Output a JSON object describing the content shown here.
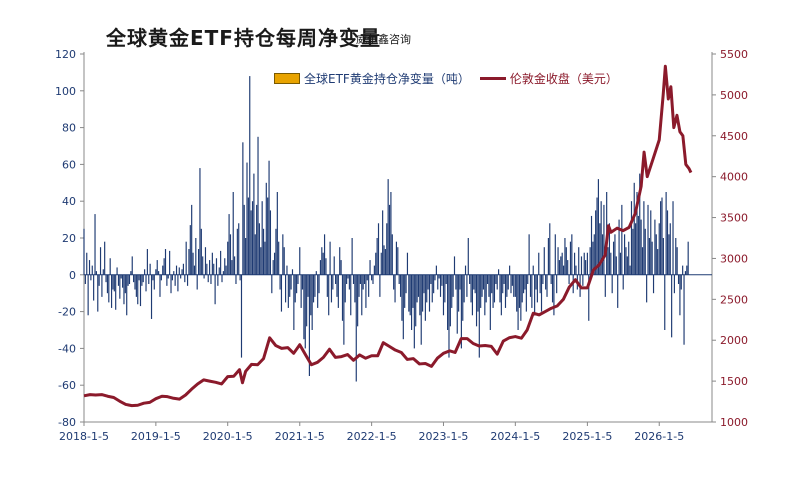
{
  "title": "全球黄金ETF持仓每周净变量",
  "source": "威尔鑫咨询",
  "colors": {
    "bars": "#1f3b73",
    "line": "#8b1a2b",
    "left_axis_text": "#1f3b73",
    "right_axis_text": "#8b1a2b",
    "legend_swatch": "#e8a300"
  },
  "chart_data": {
    "type": "bar+line",
    "left_axis": {
      "ylim": [
        -80,
        120
      ],
      "ticks": [
        "120",
        "100",
        "80",
        "60",
        "40",
        "20",
        "0",
        "-20",
        "-40",
        "-60",
        "-80"
      ]
    },
    "right_axis": {
      "ylim": [
        1000,
        5500
      ],
      "ticks": [
        "5500",
        "5000",
        "4500",
        "4000",
        "3500",
        "3000",
        "2500",
        "2000",
        "1500",
        "1000"
      ]
    },
    "x_axis": {
      "start": "2018-01-05",
      "end": "2026-09-30",
      "tick_labels": [
        "2018-1-5",
        "2019-1-5",
        "2020-1-5",
        "2021-1-5",
        "2022-1-5",
        "2023-1-5",
        "2024-1-5",
        "2025-1-5",
        "2026-1-5"
      ]
    },
    "legend": {
      "position": "top",
      "entries": [
        "全球ETF黄金持仓净变量（吨）",
        "伦敦金收盘（美元）"
      ]
    },
    "series": [
      {
        "name": "全球ETF黄金持仓净变量（吨）",
        "type": "bar",
        "axis": "left",
        "weekly_values_by_year": [
          {
            "year": 2018,
            "values": [
              25,
              -5,
              12,
              -22,
              8,
              -3,
              5,
              -14,
              33,
              2,
              -20,
              -6,
              15,
              -12,
              3,
              18,
              -4,
              -10,
              -15,
              9,
              -18,
              -8,
              -9,
              -19,
              4,
              -6,
              -13,
              -2,
              -7,
              -16,
              -10,
              -22,
              -6,
              -5,
              2,
              10,
              -4,
              -8,
              -12,
              -16,
              -3,
              -17,
              -6,
              -4,
              3,
              -9,
              14,
              -5,
              6,
              -24,
              -3,
              -8
            ]
          },
          {
            "year": 2019,
            "values": [
              3,
              8,
              2,
              -12,
              -3,
              5,
              9,
              14,
              -6,
              -2,
              13,
              -10,
              -3,
              2,
              -6,
              5,
              -9,
              4,
              -2,
              3,
              6,
              -4,
              18,
              -6,
              14,
              27,
              38,
              12,
              5,
              20,
              -8,
              14,
              58,
              25,
              10,
              -2,
              15,
              6,
              -4,
              8,
              -5,
              12,
              6,
              -16,
              9,
              -6,
              4,
              13,
              -4,
              2,
              9,
              5
            ]
          },
          {
            "year": 2020,
            "values": [
              18,
              33,
              22,
              8,
              45,
              10,
              -5,
              25,
              28,
              -3,
              -45,
              72,
              38,
              20,
              61,
              42,
              108,
              35,
              40,
              55,
              22,
              38,
              75,
              28,
              15,
              40,
              25,
              18,
              50,
              42,
              62,
              35,
              -10,
              8,
              12,
              25,
              45,
              18,
              -8,
              -20,
              22,
              15,
              -15,
              5,
              -18,
              -12,
              -8,
              3,
              -30,
              -15,
              -10,
              -5
            ]
          },
          {
            "year": 2021,
            "values": [
              15,
              -18,
              -8,
              -35,
              -40,
              -28,
              -12,
              -55,
              -22,
              -30,
              -15,
              -12,
              2,
              -18,
              -10,
              8,
              15,
              12,
              22,
              9,
              -12,
              -22,
              18,
              -15,
              -8,
              10,
              -5,
              -12,
              -18,
              15,
              8,
              -25,
              -38,
              -15,
              -5,
              -2,
              -8,
              -22,
              20,
              -5,
              -15,
              -58,
              -28,
              -12,
              -5,
              -22,
              -8,
              -5,
              -18,
              -3,
              -12,
              8
            ]
          },
          {
            "year": 2022,
            "values": [
              -3,
              -5,
              5,
              12,
              20,
              28,
              -12,
              12,
              35,
              16,
              14,
              28,
              52,
              38,
              45,
              22,
              -8,
              -15,
              18,
              15,
              -5,
              -12,
              -25,
              -35,
              -18,
              -10,
              12,
              -20,
              -22,
              -30,
              -18,
              -40,
              -28,
              -15,
              -12,
              -22,
              -38,
              -20,
              -10,
              -25,
              -15,
              -8,
              -20,
              -5,
              -15,
              -10,
              -3,
              5,
              -8,
              -2,
              -12,
              -6
            ]
          },
          {
            "year": 2023,
            "values": [
              -22,
              -15,
              -5,
              -30,
              -45,
              -28,
              -18,
              -12,
              10,
              -8,
              -32,
              -20,
              -8,
              -40,
              -25,
              -15,
              5,
              -12,
              20,
              -5,
              -15,
              -22,
              -8,
              -10,
              -28,
              -20,
              -45,
              -18,
              -12,
              -8,
              -22,
              -15,
              -5,
              -12,
              -30,
              -10,
              -18,
              -15,
              -5,
              -8,
              3,
              -15,
              -22,
              -10,
              -5,
              -18,
              -12,
              -8,
              5,
              -10,
              -6,
              -12
            ]
          },
          {
            "year": 2024,
            "values": [
              -12,
              -20,
              -30,
              -18,
              -25,
              -15,
              -10,
              -8,
              -20,
              -5,
              22,
              -12,
              -18,
              5,
              -22,
              -8,
              -15,
              12,
              -10,
              -20,
              -5,
              15,
              -8,
              -12,
              20,
              28,
              -5,
              -15,
              -22,
              22,
              -10,
              15,
              8,
              10,
              12,
              5,
              20,
              15,
              8,
              -5,
              18,
              22,
              -10,
              12,
              5,
              -8,
              15,
              -12,
              10,
              -6,
              12,
              8
            ]
          },
          {
            "year": 2025,
            "values": [
              12,
              -25,
              15,
              32,
              18,
              22,
              35,
              42,
              52,
              28,
              40,
              22,
              38,
              -12,
              45,
              15,
              28,
              12,
              -10,
              18,
              22,
              10,
              -18,
              30,
              12,
              38,
              -8,
              22,
              15,
              10,
              18,
              5,
              40,
              25,
              50,
              28,
              45,
              32,
              55,
              30,
              15,
              40,
              25,
              -15,
              38,
              20,
              35,
              18,
              -10,
              30,
              22,
              14
            ]
          },
          {
            "year": 2026,
            "values": [
              28,
              40,
              42,
              20,
              -30,
              45,
              35,
              22,
              28,
              -34,
              40,
              -10,
              20,
              15,
              -5,
              -22,
              -8,
              5,
              -38,
              2,
              5,
              18
            ]
          }
        ]
      },
      {
        "name": "伦敦金收盘（美元）",
        "type": "line",
        "axis": "right",
        "points": [
          [
            "2018-01-05",
            1320
          ],
          [
            "2018-02-05",
            1335
          ],
          [
            "2018-03-05",
            1330
          ],
          [
            "2018-04-05",
            1335
          ],
          [
            "2018-05-05",
            1315
          ],
          [
            "2018-06-05",
            1300
          ],
          [
            "2018-07-05",
            1255
          ],
          [
            "2018-08-05",
            1215
          ],
          [
            "2018-09-05",
            1200
          ],
          [
            "2018-10-05",
            1205
          ],
          [
            "2018-11-05",
            1230
          ],
          [
            "2018-12-05",
            1240
          ],
          [
            "2019-01-05",
            1285
          ],
          [
            "2019-02-05",
            1315
          ],
          [
            "2019-03-05",
            1310
          ],
          [
            "2019-04-05",
            1290
          ],
          [
            "2019-05-05",
            1280
          ],
          [
            "2019-06-05",
            1330
          ],
          [
            "2019-07-05",
            1400
          ],
          [
            "2019-08-05",
            1465
          ],
          [
            "2019-09-05",
            1515
          ],
          [
            "2019-10-05",
            1500
          ],
          [
            "2019-11-05",
            1485
          ],
          [
            "2019-12-05",
            1465
          ],
          [
            "2020-01-05",
            1555
          ],
          [
            "2020-02-05",
            1560
          ],
          [
            "2020-03-05",
            1640
          ],
          [
            "2020-03-20",
            1480
          ],
          [
            "2020-04-05",
            1620
          ],
          [
            "2020-05-05",
            1705
          ],
          [
            "2020-06-05",
            1700
          ],
          [
            "2020-07-05",
            1775
          ],
          [
            "2020-08-05",
            2030
          ],
          [
            "2020-09-05",
            1935
          ],
          [
            "2020-10-05",
            1900
          ],
          [
            "2020-11-05",
            1910
          ],
          [
            "2020-12-05",
            1840
          ],
          [
            "2021-01-05",
            1945
          ],
          [
            "2021-02-05",
            1815
          ],
          [
            "2021-03-05",
            1700
          ],
          [
            "2021-04-05",
            1730
          ],
          [
            "2021-05-05",
            1790
          ],
          [
            "2021-06-05",
            1890
          ],
          [
            "2021-07-05",
            1790
          ],
          [
            "2021-08-05",
            1800
          ],
          [
            "2021-09-05",
            1825
          ],
          [
            "2021-10-05",
            1755
          ],
          [
            "2021-11-05",
            1820
          ],
          [
            "2021-12-05",
            1780
          ],
          [
            "2022-01-05",
            1810
          ],
          [
            "2022-02-05",
            1810
          ],
          [
            "2022-03-05",
            1970
          ],
          [
            "2022-04-05",
            1925
          ],
          [
            "2022-05-05",
            1880
          ],
          [
            "2022-06-05",
            1850
          ],
          [
            "2022-07-05",
            1765
          ],
          [
            "2022-08-05",
            1775
          ],
          [
            "2022-09-05",
            1710
          ],
          [
            "2022-10-05",
            1715
          ],
          [
            "2022-11-05",
            1680
          ],
          [
            "2022-12-05",
            1780
          ],
          [
            "2023-01-05",
            1840
          ],
          [
            "2023-02-05",
            1870
          ],
          [
            "2023-03-05",
            1850
          ],
          [
            "2023-04-05",
            2020
          ],
          [
            "2023-05-05",
            2020
          ],
          [
            "2023-06-05",
            1960
          ],
          [
            "2023-07-05",
            1930
          ],
          [
            "2023-08-05",
            1935
          ],
          [
            "2023-09-05",
            1925
          ],
          [
            "2023-10-05",
            1830
          ],
          [
            "2023-11-05",
            1990
          ],
          [
            "2023-12-05",
            2030
          ],
          [
            "2024-01-05",
            2045
          ],
          [
            "2024-02-05",
            2025
          ],
          [
            "2024-03-05",
            2125
          ],
          [
            "2024-04-05",
            2330
          ],
          [
            "2024-05-05",
            2310
          ],
          [
            "2024-06-05",
            2350
          ],
          [
            "2024-07-05",
            2390
          ],
          [
            "2024-08-05",
            2420
          ],
          [
            "2024-09-05",
            2500
          ],
          [
            "2024-10-05",
            2650
          ],
          [
            "2024-11-05",
            2740
          ],
          [
            "2024-12-05",
            2640
          ],
          [
            "2025-01-05",
            2640
          ],
          [
            "2025-02-05",
            2860
          ],
          [
            "2025-03-05",
            2920
          ],
          [
            "2025-04-05",
            3040
          ],
          [
            "2025-04-22",
            3400
          ],
          [
            "2025-05-05",
            3320
          ],
          [
            "2025-06-05",
            3370
          ],
          [
            "2025-07-05",
            3340
          ],
          [
            "2025-08-05",
            3380
          ],
          [
            "2025-09-05",
            3550
          ],
          [
            "2025-10-05",
            3880
          ],
          [
            "2025-10-20",
            4300
          ],
          [
            "2025-11-05",
            4000
          ],
          [
            "2025-12-05",
            4220
          ],
          [
            "2026-01-05",
            4450
          ],
          [
            "2026-01-25",
            5000
          ],
          [
            "2026-02-05",
            5350
          ],
          [
            "2026-02-20",
            4950
          ],
          [
            "2026-03-05",
            5100
          ],
          [
            "2026-03-20",
            4600
          ],
          [
            "2026-04-05",
            4750
          ],
          [
            "2026-04-20",
            4550
          ],
          [
            "2026-05-05",
            4500
          ],
          [
            "2026-05-20",
            4150
          ],
          [
            "2026-06-05",
            4100
          ],
          [
            "2026-06-15",
            4050
          ]
        ]
      }
    ]
  }
}
